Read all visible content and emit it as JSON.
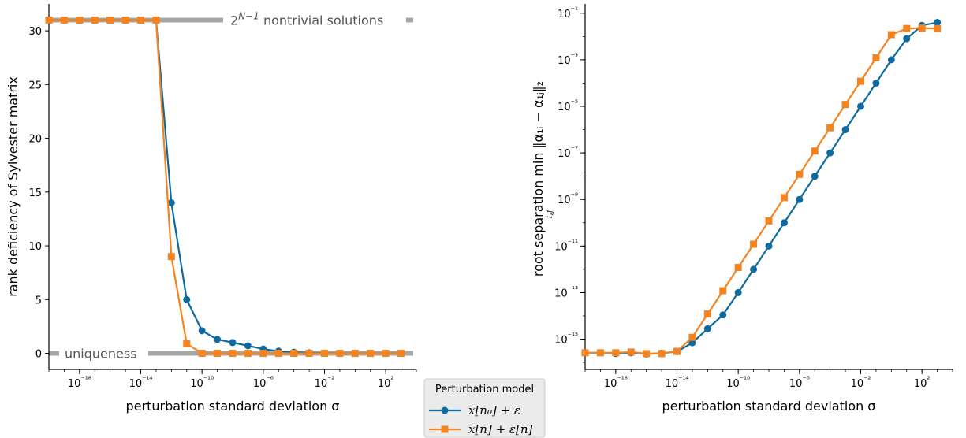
{
  "colors": {
    "series1": "#0f6a9f",
    "series2": "#f5831f",
    "reference": "#a6a6a6",
    "reference_text": "#555555"
  },
  "legend": {
    "title": "Perturbation model",
    "entries": [
      "x[n₀] + ε",
      "x[n] + ε[n]"
    ],
    "placement": "between panels, bottom"
  },
  "chart_data": [
    {
      "type": "line",
      "xscale": "log",
      "xlabel": "perturbation standard deviation σ",
      "ylabel": "rank deficiency of Sylvester matrix",
      "xlim": [
        1e-20,
        10000.0
      ],
      "ylim": [
        -1.5,
        32.5
      ],
      "xticks": [
        1e-18,
        1e-14,
        1e-10,
        1e-06,
        0.01,
        100.0
      ],
      "xtick_labels": [
        "10⁻¹⁸",
        "10⁻¹⁴",
        "10⁻¹⁰",
        "10⁻⁶",
        "10⁻²",
        "10²"
      ],
      "yticks": [
        0,
        5,
        10,
        15,
        20,
        25,
        30
      ],
      "ytick_labels": [
        "0",
        "5",
        "10",
        "15",
        "20",
        "25",
        "30"
      ],
      "grid": false,
      "reference_lines": [
        {
          "y": 31,
          "label": "2ᴺ⁻¹ nontrivial solutions"
        },
        {
          "y": 0,
          "label": "uniqueness"
        }
      ],
      "x": [
        1e-20,
        1e-19,
        1e-18,
        1e-17,
        1e-16,
        1e-15,
        1e-14,
        1e-13,
        1e-12,
        1e-11,
        1e-10,
        1e-09,
        1e-08,
        1e-07,
        1e-06,
        1e-05,
        0.0001,
        0.001,
        0.01,
        0.1,
        1.0,
        10.0,
        100.0,
        1000.0
      ],
      "series": [
        {
          "name": "x[n₀] + ε",
          "marker": "circle",
          "values": [
            31,
            31,
            31,
            31,
            31,
            31,
            31,
            31,
            14,
            5,
            2.1,
            1.3,
            1,
            0.7,
            0.4,
            0.2,
            0.1,
            0.05,
            0.02,
            0,
            0,
            0,
            0,
            0
          ]
        },
        {
          "name": "x[n] + ε[n]",
          "marker": "square",
          "values": [
            31,
            31,
            31,
            31,
            31,
            31,
            31,
            31,
            9,
            0.9,
            0,
            0,
            0,
            0,
            0,
            0,
            0,
            0,
            0,
            0,
            0,
            0,
            0,
            0
          ]
        }
      ]
    },
    {
      "type": "line",
      "xscale": "log",
      "yscale": "log",
      "xlabel": "perturbation standard deviation σ",
      "ylabel": "root separation min ‖α₁ᵢ − α₁ⱼ‖₂",
      "ylabel_sub": "i,j",
      "xlim": [
        1e-20,
        10000.0
      ],
      "ylim": [
        5e-17,
        0.25
      ],
      "xticks": [
        1e-18,
        1e-14,
        1e-10,
        1e-06,
        0.01,
        100.0
      ],
      "xtick_labels": [
        "10⁻¹⁸",
        "10⁻¹⁴",
        "10⁻¹⁰",
        "10⁻⁶",
        "10⁻²",
        "10²"
      ],
      "yticks": [
        1e-15,
        1e-13,
        1e-11,
        1e-09,
        1e-07,
        1e-05,
        0.001,
        0.1
      ],
      "ytick_labels": [
        "10⁻¹⁵",
        "10⁻¹³",
        "10⁻¹¹",
        "10⁻⁹",
        "10⁻⁷",
        "10⁻⁵",
        "10⁻³",
        "10⁻¹"
      ],
      "grid": false,
      "x": [
        1e-20,
        1e-19,
        1e-18,
        1e-17,
        1e-16,
        1e-15,
        1e-14,
        1e-13,
        1e-12,
        1e-11,
        1e-10,
        1e-09,
        1e-08,
        1e-07,
        1e-06,
        1e-05,
        0.0001,
        0.001,
        0.01,
        0.1,
        1.0,
        10.0,
        100.0,
        1000.0
      ],
      "series": [
        {
          "name": "x[n₀] + ε",
          "marker": "circle",
          "values": [
            2.6e-16,
            2.6e-16,
            2.4e-16,
            2.6e-16,
            2.3e-16,
            2.5e-16,
            2.9e-16,
            7e-16,
            2.8e-15,
            1.1e-14,
            1e-13,
            1e-12,
            1e-11,
            1e-10,
            1e-09,
            1e-08,
            1e-07,
            1e-06,
            1e-05,
            0.0001,
            0.001,
            0.008,
            0.03,
            0.04
          ]
        },
        {
          "name": "x[n] + ε[n]",
          "marker": "square",
          "values": [
            2.6e-16,
            2.6e-16,
            2.6e-16,
            2.8e-16,
            2.4e-16,
            2.4e-16,
            3e-16,
            1.2e-15,
            1.2e-14,
            1.2e-13,
            1.2e-12,
            1.2e-11,
            1.2e-10,
            1.2e-09,
            1.2e-08,
            1.2e-07,
            1.2e-06,
            1.2e-05,
            0.00012,
            0.0012,
            0.012,
            0.022,
            0.023,
            0.022
          ]
        }
      ]
    }
  ]
}
